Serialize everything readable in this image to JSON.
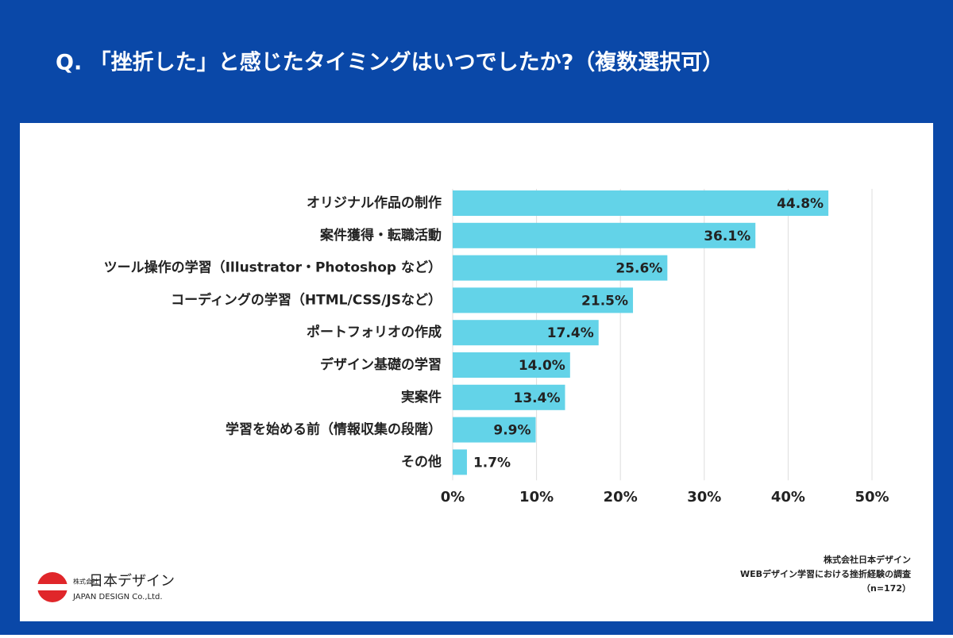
{
  "chart_data": {
    "type": "barh",
    "title": "Q. 「挫折した」と感じたタイミングはいつでしたか?（複数選択可）",
    "categories": [
      "オリジナル作品の制作",
      "案件獲得・転職活動",
      "ツール操作の学習（Illustrator・Photoshop など）",
      "コーディングの学習（HTML/CSS/JSなど）",
      "ポートフォリオの作成",
      "デザイン基礎の学習",
      "実案件",
      "学習を始める前（情報収集の段階）",
      "その他"
    ],
    "values": [
      44.8,
      36.1,
      25.6,
      21.5,
      17.4,
      14.0,
      13.4,
      9.9,
      1.7
    ],
    "value_labels": [
      "44.8%",
      "36.1%",
      "25.6%",
      "21.5%",
      "17.4%",
      "14.0%",
      "13.4%",
      "9.9%",
      "1.7%"
    ],
    "color": "#63d3e8",
    "xlim": [
      0,
      50
    ],
    "xticks": [
      {
        "value": 0,
        "label": "0%"
      },
      {
        "value": 10,
        "label": "10%"
      },
      {
        "value": 20,
        "label": "20%"
      },
      {
        "value": 30,
        "label": "30%"
      },
      {
        "value": 40,
        "label": "40%"
      },
      {
        "value": 50,
        "label": "50%"
      }
    ],
    "grid": true
  },
  "source": [
    "株式会社日本デザイン",
    "WEBデザイン学習における挫折経験の調査",
    "（n=172）"
  ],
  "logo": {
    "small": "株式会社",
    "name": "日本デザイン",
    "name_en": "JAPAN DESIGN Co.,Ltd."
  }
}
